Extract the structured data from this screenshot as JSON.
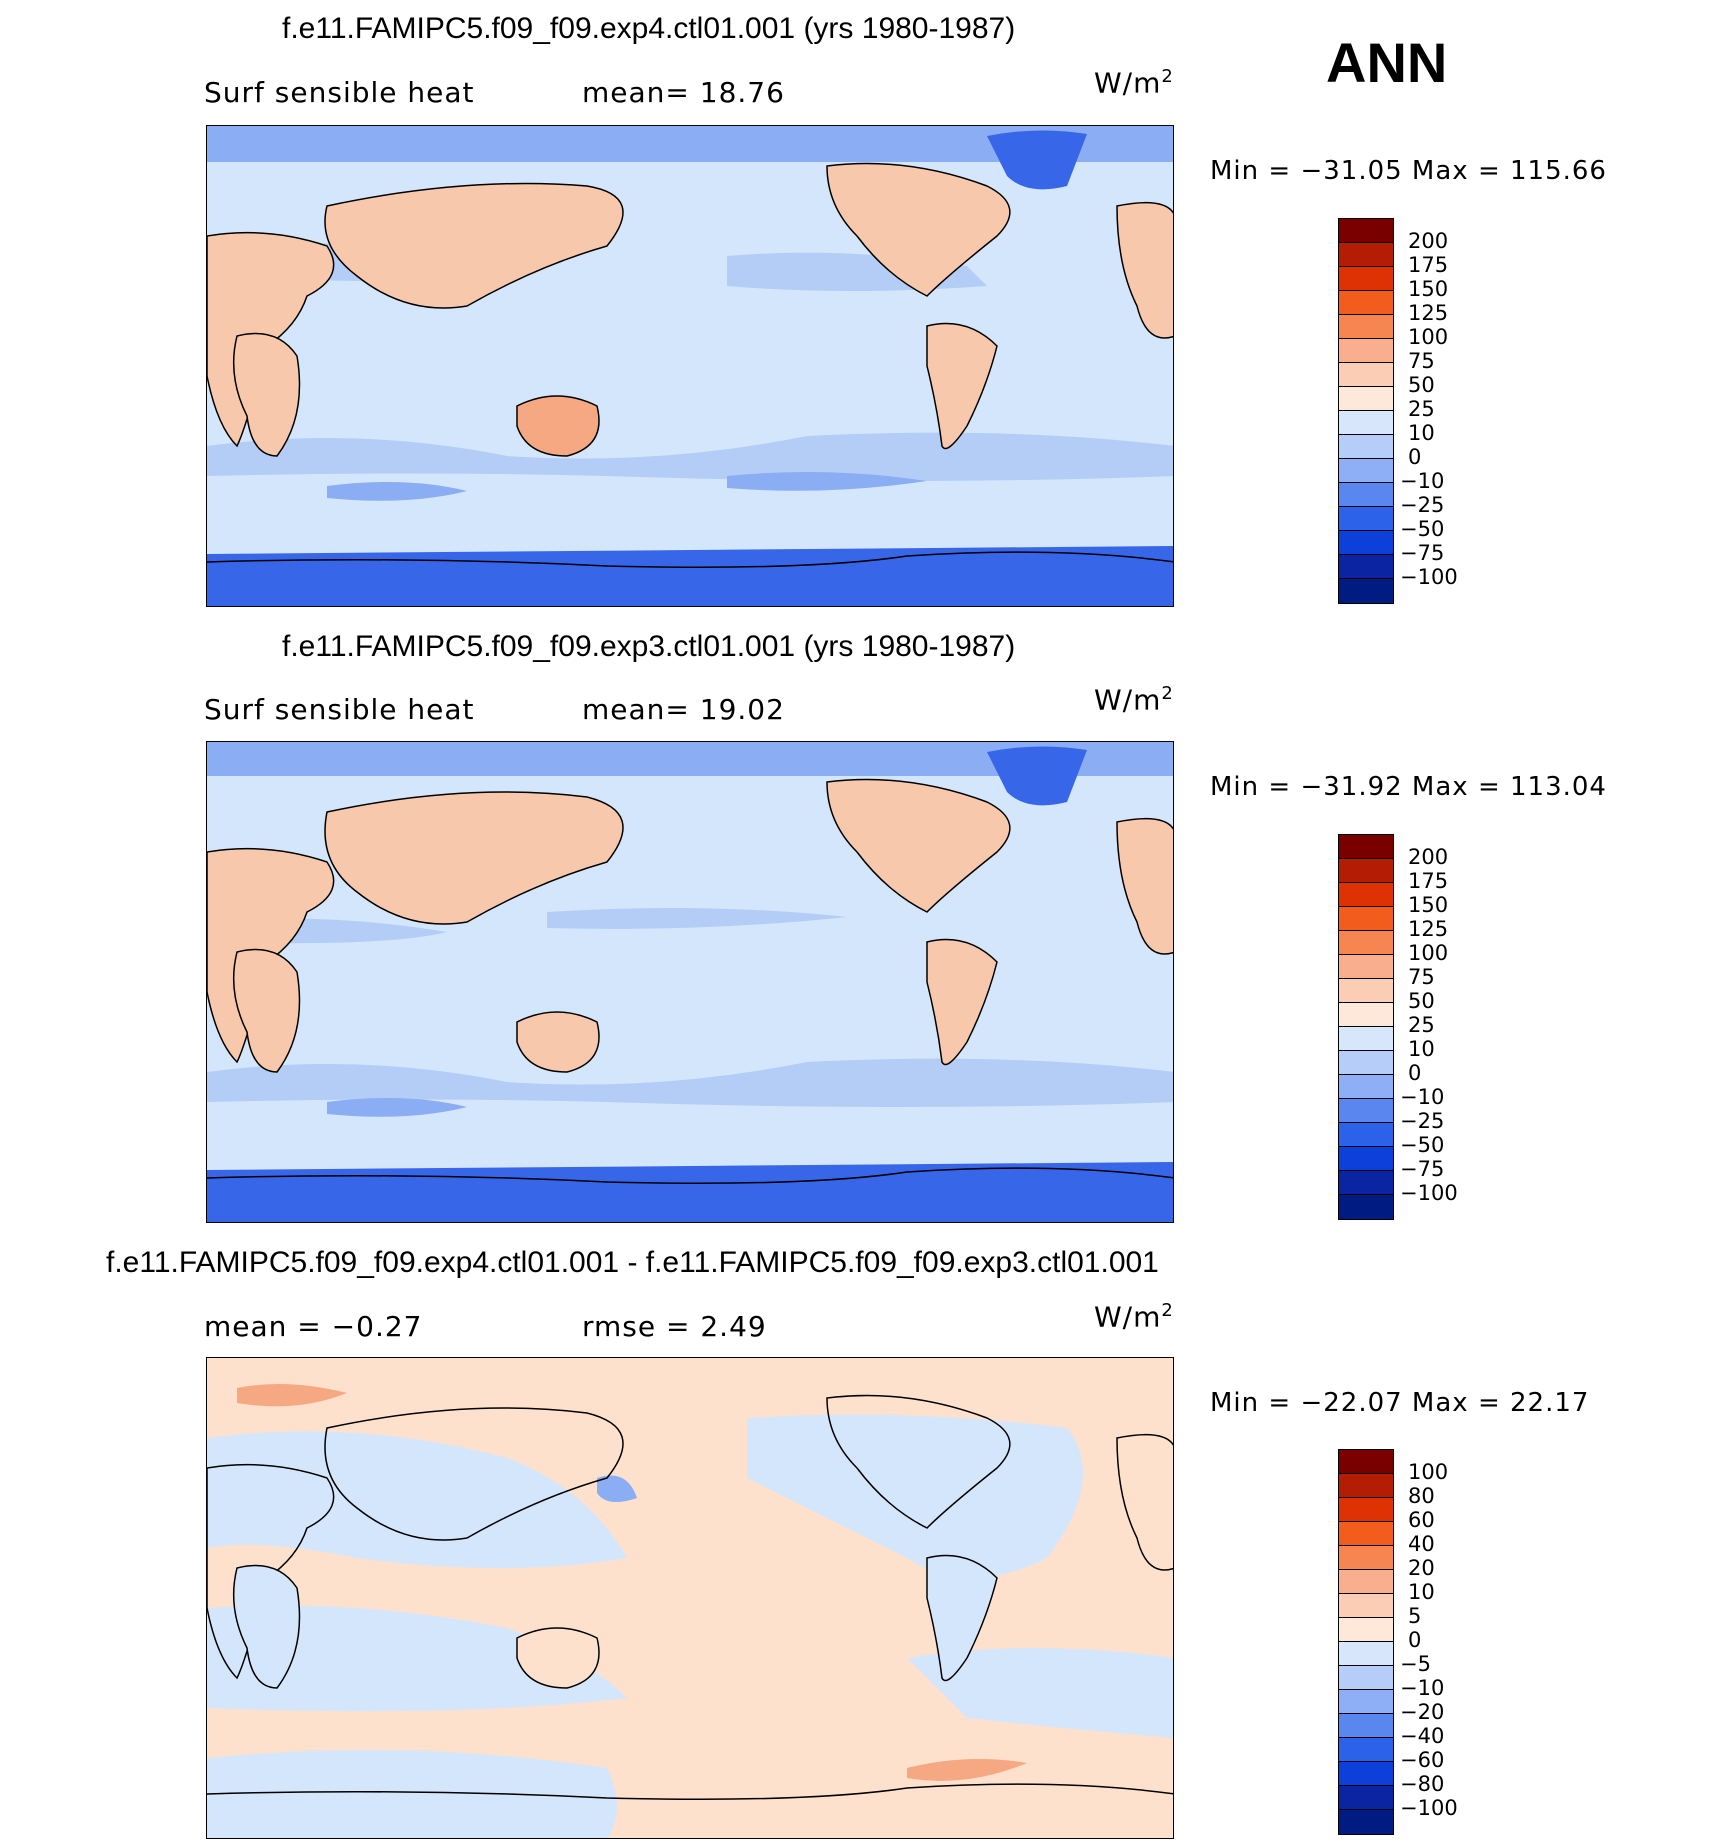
{
  "season": "ANN",
  "colors": {
    "ocean_light": "#d4e6fb",
    "band_light": "#b3cdf6",
    "band_mid": "#8aadf3",
    "band_dark": "#4a7ef0",
    "ice": "#3766e8",
    "land_warm": "#f8c8ac",
    "land_hot": "#f5a882",
    "diff_warm": "#fde1cd",
    "coast": "#000000"
  },
  "panels": [
    {
      "title": "f.e11.FAMIPC5.f09_f09.exp4.ctl01.001 (yrs 1980-1987)",
      "left_label": "Surf  sensible heat",
      "right_label": "mean=   18.76",
      "units": "W/m",
      "units_exp": "2",
      "minmax": "Min  =  −31.05  Max  =  115.66",
      "colorbar": {
        "labels": [
          "200",
          "175",
          "150",
          "125",
          "100",
          "75",
          "50",
          "25",
          "10",
          "0",
          "−10",
          "−25",
          "−50",
          "−75",
          "−100"
        ],
        "colors": [
          "#7a0000",
          "#b51c04",
          "#de3204",
          "#f25c1c",
          "#f78552",
          "#f9ae8e",
          "#fbcdb4",
          "#fde8da",
          "#d7e6fb",
          "#b5cdf8",
          "#8eaff6",
          "#5a86f0",
          "#2c62ea",
          "#0d3fda",
          "#0a24a2",
          "#001b82"
        ]
      }
    },
    {
      "title": "f.e11.FAMIPC5.f09_f09.exp3.ctl01.001 (yrs 1980-1987)",
      "left_label": "Surf  sensible heat",
      "right_label": "mean=   19.02",
      "units": "W/m",
      "units_exp": "2",
      "minmax": "Min  =  −31.92  Max  =  113.04",
      "colorbar": {
        "labels": [
          "200",
          "175",
          "150",
          "125",
          "100",
          "75",
          "50",
          "25",
          "10",
          "0",
          "−10",
          "−25",
          "−50",
          "−75",
          "−100"
        ],
        "colors": [
          "#7a0000",
          "#b51c04",
          "#de3204",
          "#f25c1c",
          "#f78552",
          "#f9ae8e",
          "#fbcdb4",
          "#fde8da",
          "#d7e6fb",
          "#b5cdf8",
          "#8eaff6",
          "#5a86f0",
          "#2c62ea",
          "#0d3fda",
          "#0a24a2",
          "#001b82"
        ]
      }
    },
    {
      "title": "f.e11.FAMIPC5.f09_f09.exp4.ctl01.001 - f.e11.FAMIPC5.f09_f09.exp3.ctl01.001",
      "left_label": "mean  =    −0.27",
      "right_label": "rmse  =     2.49",
      "units": "W/m",
      "units_exp": "2",
      "minmax": "Min  =  −22.07  Max  =   22.17",
      "colorbar": {
        "labels": [
          "100",
          "80",
          "60",
          "40",
          "20",
          "10",
          "5",
          "0",
          "−5",
          "−10",
          "−20",
          "−40",
          "−60",
          "−80",
          "−100"
        ],
        "colors": [
          "#7a0000",
          "#b51c04",
          "#de3204",
          "#f25c1c",
          "#f78552",
          "#f9ae8e",
          "#fbcdb4",
          "#fde8da",
          "#d7e6fb",
          "#b5cdf8",
          "#8eaff6",
          "#5a86f0",
          "#2c62ea",
          "#0d3fda",
          "#0a24a2",
          "#001b82"
        ]
      }
    }
  ]
}
